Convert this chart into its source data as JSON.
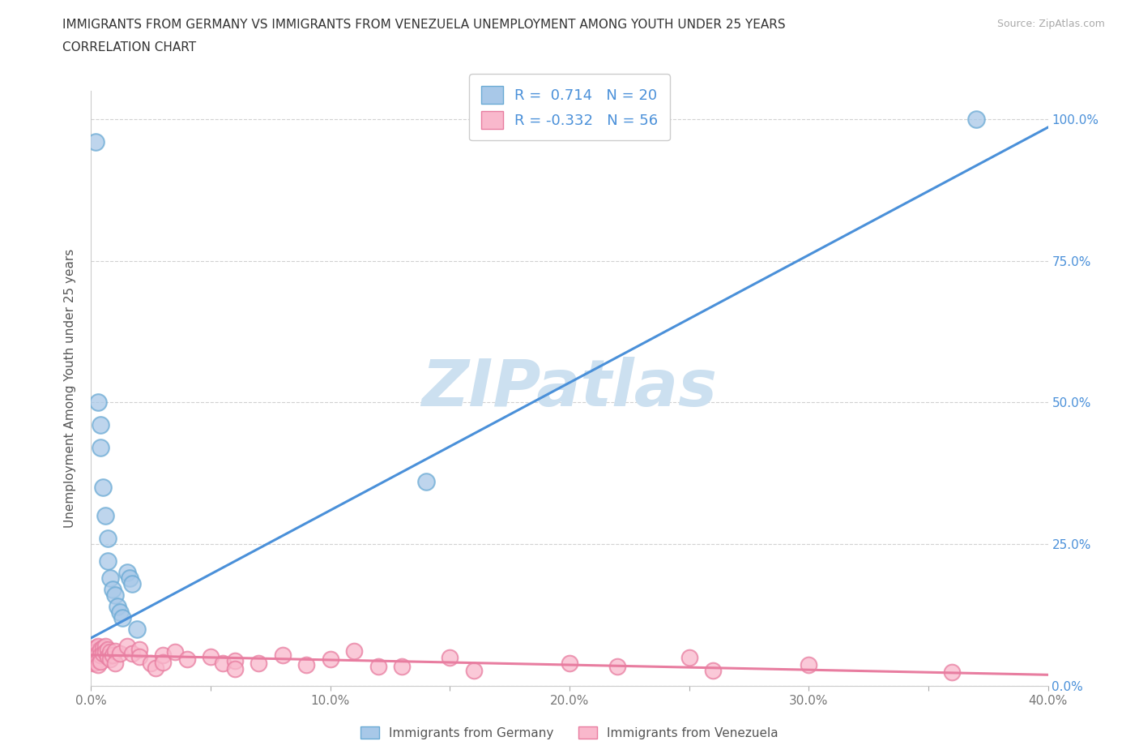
{
  "title_line1": "IMMIGRANTS FROM GERMANY VS IMMIGRANTS FROM VENEZUELA UNEMPLOYMENT AMONG YOUTH UNDER 25 YEARS",
  "title_line2": "CORRELATION CHART",
  "source_text": "Source: ZipAtlas.com",
  "ylabel": "Unemployment Among Youth under 25 years",
  "xlim": [
    0.0,
    0.4
  ],
  "ylim": [
    0.0,
    1.05
  ],
  "xtick_pos": [
    0.0,
    0.05,
    0.1,
    0.15,
    0.2,
    0.25,
    0.3,
    0.35,
    0.4
  ],
  "xtick_labels": [
    "0.0%",
    "",
    "10.0%",
    "",
    "20.0%",
    "",
    "30.0%",
    "",
    "40.0%"
  ],
  "ytick_pos": [
    0.0,
    0.25,
    0.5,
    0.75,
    1.0
  ],
  "ytick_labels": [
    "0.0%",
    "25.0%",
    "50.0%",
    "75.0%",
    "100.0%"
  ],
  "germany_fill_color": "#a8c8e8",
  "germany_edge_color": "#6aaad4",
  "venezuela_fill_color": "#f9b8cc",
  "venezuela_edge_color": "#e87da0",
  "germany_line_color": "#4a90d9",
  "venezuela_line_color": "#e87da0",
  "legend_R_color": "#4a90d9",
  "watermark_color": "#cce0f0",
  "background_color": "#ffffff",
  "germany_R": 0.714,
  "germany_N": 20,
  "venezuela_R": -0.332,
  "venezuela_N": 56,
  "watermark": "ZIPatlas",
  "blue_line_x0": 0.0,
  "blue_line_y0": 0.085,
  "blue_line_x1": 0.4,
  "blue_line_y1": 0.985,
  "pink_line_x0": 0.0,
  "pink_line_y0": 0.055,
  "pink_line_x1": 0.4,
  "pink_line_y1": 0.02,
  "germany_dots": [
    [
      0.002,
      0.96
    ],
    [
      0.003,
      0.5
    ],
    [
      0.004,
      0.46
    ],
    [
      0.004,
      0.42
    ],
    [
      0.005,
      0.35
    ],
    [
      0.006,
      0.3
    ],
    [
      0.007,
      0.26
    ],
    [
      0.007,
      0.22
    ],
    [
      0.008,
      0.19
    ],
    [
      0.009,
      0.17
    ],
    [
      0.01,
      0.16
    ],
    [
      0.011,
      0.14
    ],
    [
      0.012,
      0.13
    ],
    [
      0.013,
      0.12
    ],
    [
      0.015,
      0.2
    ],
    [
      0.016,
      0.19
    ],
    [
      0.017,
      0.18
    ],
    [
      0.019,
      0.1
    ],
    [
      0.14,
      0.36
    ],
    [
      0.37,
      1.0
    ]
  ],
  "venezuela_dots": [
    [
      0.001,
      0.065
    ],
    [
      0.001,
      0.055
    ],
    [
      0.001,
      0.048
    ],
    [
      0.001,
      0.04
    ],
    [
      0.002,
      0.068
    ],
    [
      0.002,
      0.06
    ],
    [
      0.002,
      0.052
    ],
    [
      0.002,
      0.042
    ],
    [
      0.003,
      0.07
    ],
    [
      0.003,
      0.058
    ],
    [
      0.003,
      0.046
    ],
    [
      0.003,
      0.038
    ],
    [
      0.004,
      0.065
    ],
    [
      0.004,
      0.055
    ],
    [
      0.004,
      0.044
    ],
    [
      0.005,
      0.068
    ],
    [
      0.005,
      0.058
    ],
    [
      0.006,
      0.07
    ],
    [
      0.006,
      0.06
    ],
    [
      0.007,
      0.065
    ],
    [
      0.007,
      0.052
    ],
    [
      0.008,
      0.06
    ],
    [
      0.008,
      0.048
    ],
    [
      0.009,
      0.055
    ],
    [
      0.01,
      0.062
    ],
    [
      0.01,
      0.04
    ],
    [
      0.012,
      0.058
    ],
    [
      0.015,
      0.07
    ],
    [
      0.017,
      0.058
    ],
    [
      0.02,
      0.065
    ],
    [
      0.02,
      0.052
    ],
    [
      0.025,
      0.04
    ],
    [
      0.027,
      0.032
    ],
    [
      0.03,
      0.055
    ],
    [
      0.03,
      0.042
    ],
    [
      0.035,
      0.06
    ],
    [
      0.04,
      0.048
    ],
    [
      0.05,
      0.052
    ],
    [
      0.055,
      0.04
    ],
    [
      0.06,
      0.045
    ],
    [
      0.06,
      0.03
    ],
    [
      0.07,
      0.04
    ],
    [
      0.08,
      0.055
    ],
    [
      0.09,
      0.038
    ],
    [
      0.1,
      0.048
    ],
    [
      0.11,
      0.062
    ],
    [
      0.12,
      0.035
    ],
    [
      0.13,
      0.035
    ],
    [
      0.15,
      0.05
    ],
    [
      0.16,
      0.028
    ],
    [
      0.2,
      0.04
    ],
    [
      0.22,
      0.035
    ],
    [
      0.25,
      0.05
    ],
    [
      0.26,
      0.028
    ],
    [
      0.3,
      0.038
    ],
    [
      0.36,
      0.025
    ]
  ]
}
